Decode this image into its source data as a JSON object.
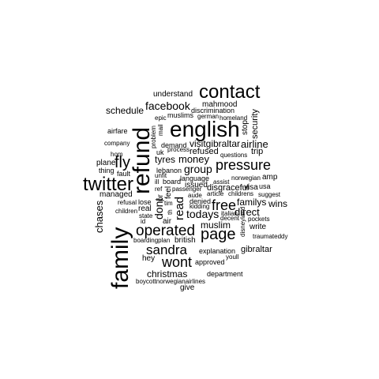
{
  "text_color": "#000000",
  "background_color": "#ffffff",
  "words": [
    {
      "text": "understand",
      "rotated": false
    },
    {
      "text": "contact",
      "rotated": false
    },
    {
      "text": "mahmood",
      "rotated": false
    },
    {
      "text": "facebook",
      "rotated": false
    },
    {
      "text": "discrimination",
      "rotated": false
    },
    {
      "text": "schedule",
      "rotated": false
    },
    {
      "text": "muslims",
      "rotated": false
    },
    {
      "text": "german",
      "rotated": false
    },
    {
      "text": "epic",
      "rotated": false
    },
    {
      "text": "homeland",
      "rotated": false
    },
    {
      "text": "english",
      "rotated": false
    },
    {
      "text": "airfare",
      "rotated": false
    },
    {
      "text": "company",
      "rotated": false
    },
    {
      "text": "demand",
      "rotated": false
    },
    {
      "text": "visitgibraltar",
      "rotated": false
    },
    {
      "text": "airline",
      "rotated": false
    },
    {
      "text": "process",
      "rotated": false
    },
    {
      "text": "uk",
      "rotated": false
    },
    {
      "text": "refused",
      "rotated": false
    },
    {
      "text": "questions",
      "rotated": false
    },
    {
      "text": "trip",
      "rotated": false
    },
    {
      "text": "hom",
      "rotated": false
    },
    {
      "text": "fly",
      "rotated": false
    },
    {
      "text": "tyres",
      "rotated": false
    },
    {
      "text": "money",
      "rotated": false
    },
    {
      "text": "plane",
      "rotated": false
    },
    {
      "text": "pressure",
      "rotated": false
    },
    {
      "text": "thing",
      "rotated": false
    },
    {
      "text": "group",
      "rotated": false
    },
    {
      "text": "lebanon",
      "rotated": false
    },
    {
      "text": "fault",
      "rotated": false
    },
    {
      "text": "unfit",
      "rotated": false
    },
    {
      "text": "twitter",
      "rotated": false
    },
    {
      "text": "board",
      "rotated": false
    },
    {
      "text": "language",
      "rotated": false
    },
    {
      "text": "norwegian",
      "rotated": false
    },
    {
      "text": "amp",
      "rotated": false
    },
    {
      "text": "assist",
      "rotated": false
    },
    {
      "text": "ill",
      "rotated": false
    },
    {
      "text": "issued",
      "rotated": false
    },
    {
      "text": "ref",
      "rotated": false
    },
    {
      "text": "passenger",
      "rotated": false
    },
    {
      "text": "disgraceful",
      "rotated": false
    },
    {
      "text": "visa",
      "rotated": false
    },
    {
      "text": "usa",
      "rotated": false
    },
    {
      "text": "managed",
      "rotated": false
    },
    {
      "text": "article",
      "rotated": false
    },
    {
      "text": "childrens",
      "rotated": false
    },
    {
      "text": "suggest",
      "rotated": false
    },
    {
      "text": "aude",
      "rotated": false
    },
    {
      "text": "free",
      "rotated": false
    },
    {
      "text": "refusal",
      "rotated": false
    },
    {
      "text": "lose",
      "rotated": false
    },
    {
      "text": "denied",
      "rotated": false
    },
    {
      "text": "familys",
      "rotated": false
    },
    {
      "text": "wins",
      "rotated": false
    },
    {
      "text": "tim",
      "rotated": false
    },
    {
      "text": "kidding",
      "rotated": false
    },
    {
      "text": "real",
      "rotated": false
    },
    {
      "text": "children",
      "rotated": false
    },
    {
      "text": "todays",
      "rotated": false
    },
    {
      "text": "direct",
      "rotated": false
    },
    {
      "text": "italian",
      "rotated": false
    },
    {
      "text": "state",
      "rotated": false
    },
    {
      "text": "decent",
      "rotated": false
    },
    {
      "text": "pockets",
      "rotated": false
    },
    {
      "text": "id",
      "rotated": false
    },
    {
      "text": "air",
      "rotated": false
    },
    {
      "text": "muslim",
      "rotated": false
    },
    {
      "text": "write",
      "rotated": false
    },
    {
      "text": "operated",
      "rotated": false
    },
    {
      "text": "page",
      "rotated": false
    },
    {
      "text": "traumateddy",
      "rotated": false
    },
    {
      "text": "boardingplan",
      "rotated": false
    },
    {
      "text": "british",
      "rotated": false
    },
    {
      "text": "sandra",
      "rotated": false
    },
    {
      "text": "gibraltar",
      "rotated": false
    },
    {
      "text": "explanation",
      "rotated": false
    },
    {
      "text": "hey",
      "rotated": false
    },
    {
      "text": "youll",
      "rotated": false
    },
    {
      "text": "wont",
      "rotated": false
    },
    {
      "text": "approved",
      "rotated": false
    },
    {
      "text": "christmas",
      "rotated": false
    },
    {
      "text": "department",
      "rotated": false
    },
    {
      "text": "boycottnorwegianairlines",
      "rotated": false
    },
    {
      "text": "give",
      "rotated": false
    },
    {
      "text": "family",
      "rotated": true
    },
    {
      "text": "refund",
      "rotated": true
    },
    {
      "text": "chases",
      "rotated": true
    },
    {
      "text": "mail",
      "rotated": true
    },
    {
      "text": "problem",
      "rotated": true
    },
    {
      "text": "stop",
      "rotated": true
    },
    {
      "text": "security",
      "rotated": true
    },
    {
      "text": "feel",
      "rotated": true
    },
    {
      "text": "pr",
      "rotated": true
    },
    {
      "text": "dont",
      "rotated": true
    },
    {
      "text": "read",
      "rotated": true
    },
    {
      "text": "th",
      "rotated": true
    },
    {
      "text": "disneyland",
      "rotated": true
    }
  ]
}
